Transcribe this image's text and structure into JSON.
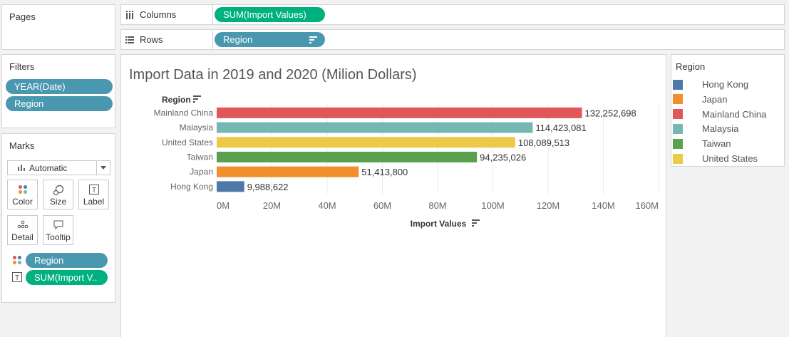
{
  "pages": {
    "title": "Pages"
  },
  "columns_shelf": {
    "label": "Columns",
    "pill": "SUM(Import Values)"
  },
  "rows_shelf": {
    "label": "Rows",
    "pill": "Region"
  },
  "filters": {
    "title": "Filters",
    "pills": [
      "YEAR(Date)",
      "Region"
    ]
  },
  "marks": {
    "title": "Marks",
    "type": "Automatic",
    "buttons": {
      "color": "Color",
      "size": "Size",
      "label": "Label",
      "detail": "Detail",
      "tooltip": "Tooltip"
    },
    "fields": {
      "color_field": "Region",
      "label_field": "SUM(Import V.."
    }
  },
  "legend": {
    "title": "Region",
    "items": [
      {
        "label": "Hong Kong",
        "color": "#4e79a7"
      },
      {
        "label": "Japan",
        "color": "#f28e2b"
      },
      {
        "label": "Mainland China",
        "color": "#e15759"
      },
      {
        "label": "Malaysia",
        "color": "#76b7b2"
      },
      {
        "label": "Taiwan",
        "color": "#59a14f"
      },
      {
        "label": "United States",
        "color": "#edc948"
      }
    ]
  },
  "chart_data": {
    "type": "bar",
    "orientation": "horizontal",
    "title": "Import Data in 2019 and 2020 (Milion Dollars)",
    "row_header": "Region",
    "xlabel": "Import Values",
    "categories": [
      "Mainland China",
      "Malaysia",
      "United States",
      "Taiwan",
      "Japan",
      "Hong Kong"
    ],
    "values": [
      132252698,
      114423081,
      108089513,
      94235026,
      51413800,
      9988622
    ],
    "value_labels": [
      "132,252,698",
      "114,423,081",
      "108,089,513",
      "94,235,026",
      "51,413,800",
      "9,988,622"
    ],
    "colors": [
      "#e15759",
      "#76b7b2",
      "#edc948",
      "#59a14f",
      "#f28e2b",
      "#4e79a7"
    ],
    "xlim": [
      0,
      160000000
    ],
    "xticks": [
      0,
      20000000,
      40000000,
      60000000,
      80000000,
      100000000,
      120000000,
      140000000,
      160000000
    ],
    "xtick_labels": [
      "0M",
      "20M",
      "40M",
      "60M",
      "80M",
      "100M",
      "120M",
      "140M",
      "160M"
    ],
    "grid": true
  }
}
